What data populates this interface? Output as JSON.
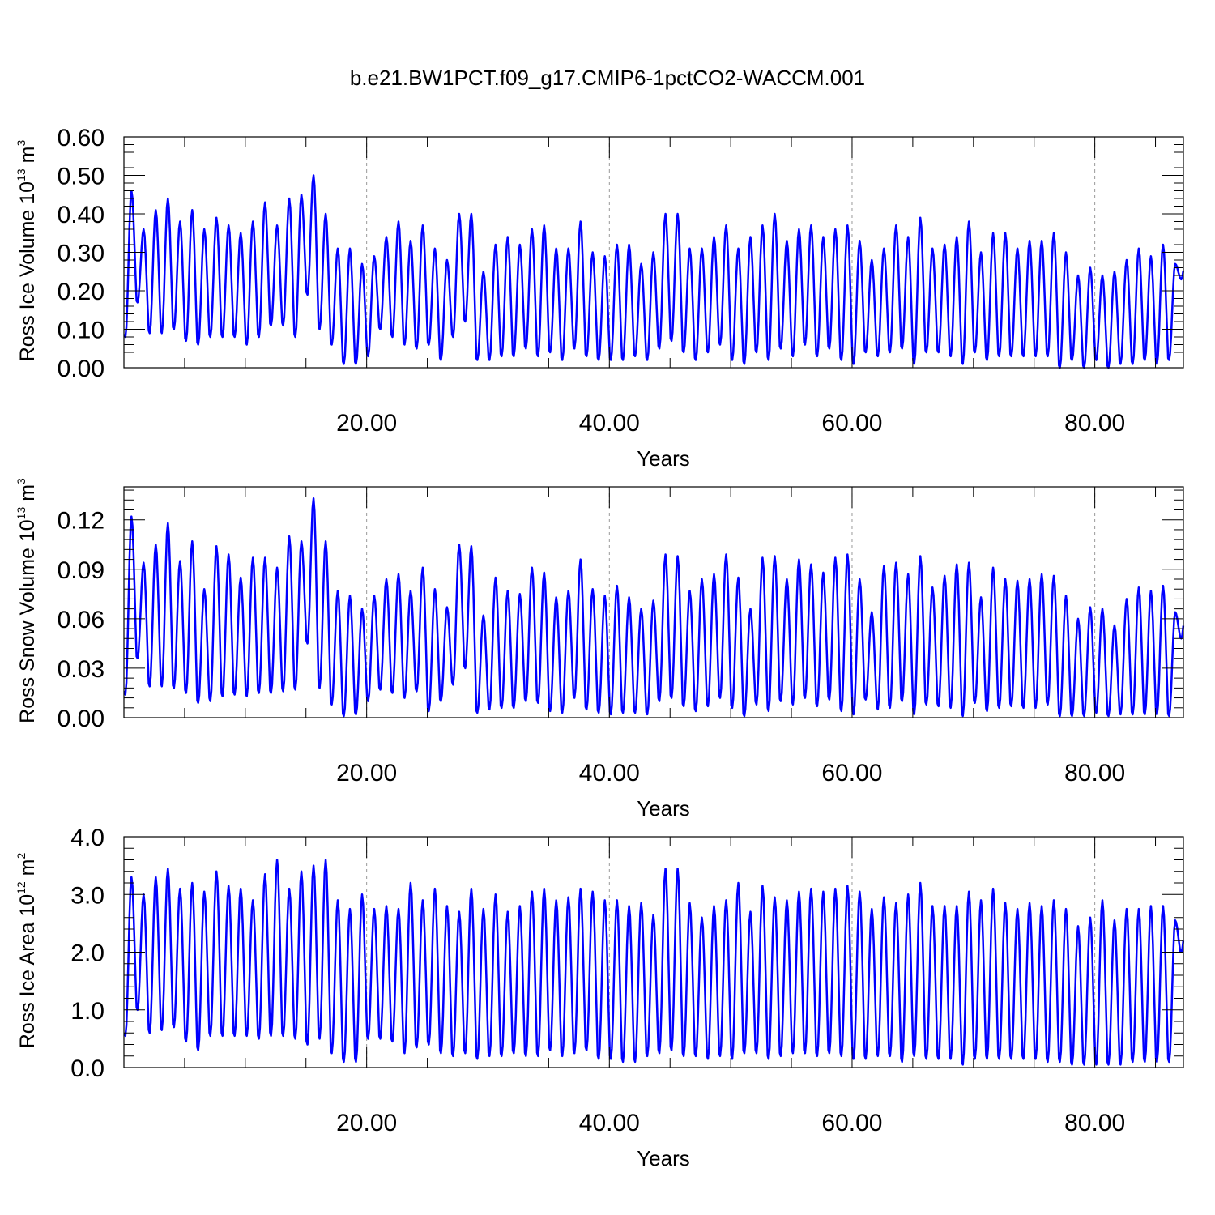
{
  "figure_title": "b.e21.BW1PCT.f09_g17.CMIP6-1pctCO2-WACCM.001",
  "line_color": "#0000ff",
  "chart_data": [
    {
      "type": "line",
      "xlabel": "Years",
      "ylabel": {
        "main": "Ross Ice Volume 10",
        "exp": "13",
        "unit": " m",
        "unit_exp": "3"
      },
      "xlim": [
        0,
        87.3
      ],
      "ylim": [
        0,
        0.6
      ],
      "xticks": [
        20,
        40,
        60,
        80
      ],
      "xtick_labels": [
        "20.00",
        "40.00",
        "60.00",
        "80.00"
      ],
      "yticks": [
        0,
        0.1,
        0.2,
        0.3,
        0.4,
        0.5,
        0.6
      ],
      "ytick_labels": [
        "0.00",
        "0.10",
        "0.20",
        "0.30",
        "0.40",
        "0.50",
        "0.60"
      ],
      "vertical_gridlines_at": [
        20,
        40,
        60,
        80
      ],
      "series": [
        {
          "sampling": "monthly, one annual cycle per year",
          "year_start": 0,
          "annual_max": [
            0.46,
            0.36,
            0.41,
            0.44,
            0.38,
            0.41,
            0.36,
            0.39,
            0.37,
            0.35,
            0.38,
            0.43,
            0.37,
            0.44,
            0.45,
            0.5,
            0.4,
            0.31,
            0.31,
            0.27,
            0.29,
            0.34,
            0.38,
            0.33,
            0.37,
            0.31,
            0.28,
            0.4,
            0.4,
            0.25,
            0.32,
            0.34,
            0.32,
            0.36,
            0.37,
            0.31,
            0.31,
            0.38,
            0.3,
            0.29,
            0.32,
            0.32,
            0.27,
            0.3,
            0.4,
            0.4,
            0.31,
            0.31,
            0.34,
            0.37,
            0.31,
            0.34,
            0.37,
            0.4,
            0.33,
            0.36,
            0.37,
            0.34,
            0.36,
            0.37,
            0.33,
            0.28,
            0.31,
            0.37,
            0.34,
            0.39,
            0.31,
            0.32,
            0.34,
            0.38,
            0.3,
            0.35,
            0.35,
            0.31,
            0.33,
            0.33,
            0.35,
            0.3,
            0.24,
            0.26,
            0.24,
            0.25,
            0.28,
            0.31,
            0.29,
            0.32,
            0.27,
            0.32
          ],
          "annual_min": [
            0.08,
            0.17,
            0.09,
            0.09,
            0.1,
            0.07,
            0.06,
            0.08,
            0.08,
            0.08,
            0.06,
            0.08,
            0.11,
            0.11,
            0.08,
            0.19,
            0.1,
            0.06,
            0.01,
            0.01,
            0.03,
            0.1,
            0.08,
            0.06,
            0.05,
            0.06,
            0.02,
            0.08,
            0.12,
            0.02,
            0.02,
            0.03,
            0.03,
            0.05,
            0.03,
            0.04,
            0.02,
            0.05,
            0.03,
            0.02,
            0.02,
            0.02,
            0.03,
            0.02,
            0.05,
            0.07,
            0.04,
            0.02,
            0.04,
            0.06,
            0.02,
            0.01,
            0.04,
            0.02,
            0.05,
            0.03,
            0.06,
            0.03,
            0.05,
            0.02,
            0.01,
            0.04,
            0.03,
            0.04,
            0.05,
            0.01,
            0.04,
            0.04,
            0.03,
            0.01,
            0.04,
            0.02,
            0.03,
            0.03,
            0.03,
            0.03,
            0.03,
            0.0,
            0.02,
            0.0,
            0.02,
            0.0,
            0.01,
            0.01,
            0.02,
            0.01,
            0.02,
            0.23
          ]
        }
      ]
    },
    {
      "type": "line",
      "xlabel": "Years",
      "ylabel": {
        "main": "Ross Snow Volume 10",
        "exp": "13",
        "unit": " m",
        "unit_exp": "3"
      },
      "xlim": [
        0,
        87.3
      ],
      "ylim": [
        0,
        0.14
      ],
      "xticks": [
        20,
        40,
        60,
        80
      ],
      "xtick_labels": [
        "20.00",
        "40.00",
        "60.00",
        "80.00"
      ],
      "yticks": [
        0,
        0.03,
        0.06,
        0.09,
        0.12
      ],
      "ytick_labels": [
        "0.00",
        "0.03",
        "0.06",
        "0.09",
        "0.12"
      ],
      "vertical_gridlines_at": [
        20,
        40,
        60,
        80
      ],
      "series": [
        {
          "sampling": "monthly, one annual cycle per year",
          "year_start": 0,
          "annual_max": [
            0.122,
            0.094,
            0.105,
            0.118,
            0.095,
            0.107,
            0.078,
            0.104,
            0.099,
            0.085,
            0.097,
            0.097,
            0.091,
            0.11,
            0.107,
            0.133,
            0.107,
            0.077,
            0.074,
            0.066,
            0.074,
            0.084,
            0.087,
            0.077,
            0.091,
            0.078,
            0.067,
            0.105,
            0.104,
            0.062,
            0.085,
            0.077,
            0.075,
            0.091,
            0.088,
            0.073,
            0.077,
            0.096,
            0.078,
            0.074,
            0.08,
            0.073,
            0.066,
            0.071,
            0.099,
            0.098,
            0.077,
            0.084,
            0.087,
            0.099,
            0.085,
            0.066,
            0.097,
            0.098,
            0.084,
            0.096,
            0.093,
            0.088,
            0.097,
            0.099,
            0.084,
            0.064,
            0.092,
            0.094,
            0.087,
            0.098,
            0.079,
            0.086,
            0.093,
            0.094,
            0.073,
            0.091,
            0.084,
            0.083,
            0.084,
            0.087,
            0.086,
            0.074,
            0.06,
            0.067,
            0.066,
            0.056,
            0.072,
            0.079,
            0.077,
            0.08,
            0.064,
            0.079
          ],
          "annual_min": [
            0.014,
            0.036,
            0.019,
            0.019,
            0.018,
            0.015,
            0.009,
            0.01,
            0.013,
            0.014,
            0.013,
            0.015,
            0.015,
            0.016,
            0.017,
            0.045,
            0.018,
            0.008,
            0.001,
            0.002,
            0.01,
            0.017,
            0.015,
            0.012,
            0.016,
            0.004,
            0.01,
            0.02,
            0.03,
            0.003,
            0.005,
            0.006,
            0.006,
            0.01,
            0.009,
            0.004,
            0.003,
            0.012,
            0.005,
            0.003,
            0.002,
            0.003,
            0.003,
            0.002,
            0.01,
            0.012,
            0.007,
            0.004,
            0.007,
            0.012,
            0.006,
            0.001,
            0.008,
            0.004,
            0.01,
            0.008,
            0.012,
            0.007,
            0.011,
            0.004,
            0.002,
            0.011,
            0.005,
            0.006,
            0.01,
            0.002,
            0.008,
            0.007,
            0.006,
            0.001,
            0.009,
            0.004,
            0.006,
            0.007,
            0.006,
            0.006,
            0.008,
            0.001,
            0.001,
            0.001,
            0.003,
            0.001,
            0.002,
            0.002,
            0.002,
            0.002,
            0.001,
            0.048
          ]
        }
      ]
    },
    {
      "type": "line",
      "xlabel": "Years",
      "ylabel": {
        "main": "Ross Ice Area 10",
        "exp": "12",
        "unit": " m",
        "unit_exp": "2"
      },
      "xlim": [
        0,
        87.3
      ],
      "ylim": [
        0,
        4.0
      ],
      "xticks": [
        20,
        40,
        60,
        80
      ],
      "xtick_labels": [
        "20.00",
        "40.00",
        "60.00",
        "80.00"
      ],
      "yticks": [
        0,
        1,
        2,
        3,
        4
      ],
      "ytick_labels": [
        "0.0",
        "1.0",
        "2.0",
        "3.0",
        "4.0"
      ],
      "vertical_gridlines_at": [
        20,
        40,
        60,
        80
      ],
      "series": [
        {
          "sampling": "monthly, one annual cycle per year",
          "year_start": 0,
          "annual_max": [
            3.3,
            3.0,
            3.3,
            3.45,
            3.1,
            3.2,
            3.05,
            3.4,
            3.15,
            3.1,
            2.9,
            3.35,
            3.6,
            3.1,
            3.4,
            3.5,
            3.6,
            2.9,
            2.75,
            3.0,
            2.75,
            2.8,
            2.75,
            3.2,
            2.9,
            3.1,
            2.8,
            2.7,
            3.1,
            2.75,
            3.0,
            2.7,
            2.8,
            3.05,
            3.1,
            2.9,
            2.95,
            3.1,
            3.05,
            2.9,
            2.9,
            2.8,
            2.85,
            2.65,
            3.45,
            3.45,
            2.85,
            2.6,
            2.8,
            2.9,
            3.2,
            2.7,
            3.15,
            2.95,
            2.9,
            3.05,
            3.1,
            3.05,
            3.1,
            3.15,
            3.05,
            2.75,
            2.95,
            2.85,
            3.0,
            3.2,
            2.8,
            2.8,
            2.8,
            3.05,
            2.9,
            3.1,
            2.85,
            2.75,
            2.85,
            2.8,
            2.9,
            2.75,
            2.45,
            2.6,
            2.9,
            2.55,
            2.75,
            2.75,
            2.8,
            2.8,
            2.55,
            2.8
          ],
          "annual_min": [
            0.55,
            1.0,
            0.6,
            0.65,
            0.7,
            0.45,
            0.3,
            0.55,
            0.55,
            0.55,
            0.55,
            0.5,
            0.55,
            0.55,
            0.5,
            0.4,
            0.5,
            0.25,
            0.1,
            0.1,
            0.5,
            0.5,
            0.45,
            0.25,
            0.35,
            0.4,
            0.25,
            0.2,
            0.25,
            0.15,
            0.2,
            0.2,
            0.25,
            0.2,
            0.2,
            0.3,
            0.2,
            0.25,
            0.3,
            0.15,
            0.15,
            0.1,
            0.1,
            0.2,
            0.25,
            0.3,
            0.2,
            0.2,
            0.15,
            0.2,
            0.15,
            0.25,
            0.25,
            0.15,
            0.2,
            0.25,
            0.25,
            0.2,
            0.25,
            0.2,
            0.15,
            0.15,
            0.2,
            0.2,
            0.1,
            0.2,
            0.15,
            0.15,
            0.15,
            0.05,
            0.15,
            0.15,
            0.15,
            0.15,
            0.15,
            0.15,
            0.1,
            0.1,
            0.05,
            0.05,
            0.05,
            0.05,
            0.05,
            0.1,
            0.1,
            0.1,
            0.1,
            2.0
          ]
        }
      ]
    }
  ]
}
